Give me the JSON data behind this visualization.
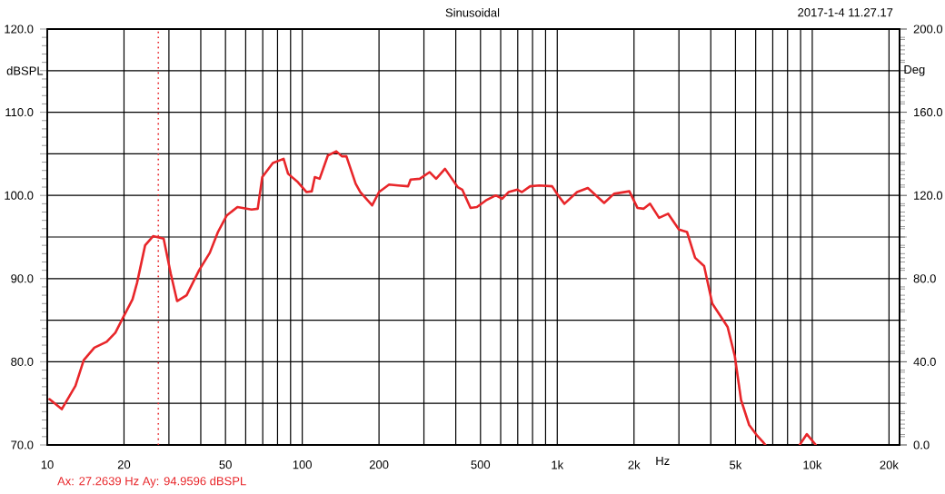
{
  "chart_data": {
    "type": "line",
    "title": "Sinusoidal",
    "xlabel": "Hz",
    "ylabel": "dBSPL",
    "y2label": "Deg",
    "annotations": [
      "2017-1-4 11.27.17",
      "Ax: 27.2639 Hz  Ay: 94.9596 dBSPL"
    ],
    "log": "x",
    "grid": true,
    "marker": "none",
    "line_style": "solid",
    "xlim": [
      10,
      22000
    ],
    "ylim": [
      70,
      120
    ],
    "y2lim": [
      0,
      200
    ],
    "xticks": [
      {
        "value": 10,
        "label": "10"
      },
      {
        "value": 20,
        "label": "20"
      },
      {
        "value": 30,
        "label": null
      },
      {
        "value": 40,
        "label": null
      },
      {
        "value": 50,
        "label": "50"
      },
      {
        "value": 60,
        "label": null
      },
      {
        "value": 70,
        "label": null
      },
      {
        "value": 80,
        "label": null
      },
      {
        "value": 90,
        "label": null
      },
      {
        "value": 100,
        "label": "100"
      },
      {
        "value": 200,
        "label": "200"
      },
      {
        "value": 300,
        "label": null
      },
      {
        "value": 400,
        "label": null
      },
      {
        "value": 500,
        "label": "500"
      },
      {
        "value": 600,
        "label": null
      },
      {
        "value": 700,
        "label": null
      },
      {
        "value": 800,
        "label": null
      },
      {
        "value": 900,
        "label": null
      },
      {
        "value": 1000,
        "label": "1k"
      },
      {
        "value": 2000,
        "label": "2k"
      },
      {
        "value": 3000,
        "label": null
      },
      {
        "value": 4000,
        "label": null
      },
      {
        "value": 5000,
        "label": "5k"
      },
      {
        "value": 6000,
        "label": null
      },
      {
        "value": 7000,
        "label": null
      },
      {
        "value": 8000,
        "label": null
      },
      {
        "value": 9000,
        "label": null
      },
      {
        "value": 10000,
        "label": "10k"
      },
      {
        "value": 20000,
        "label": "20k"
      }
    ],
    "yticks": [
      {
        "value": 70,
        "label": "70.0"
      },
      {
        "value": 75,
        "label": null
      },
      {
        "value": 80,
        "label": "80.0"
      },
      {
        "value": 85,
        "label": null
      },
      {
        "value": 90,
        "label": "90.0"
      },
      {
        "value": 95,
        "label": null
      },
      {
        "value": 100,
        "label": "100.0"
      },
      {
        "value": 105,
        "label": null
      },
      {
        "value": 110,
        "label": "110.0"
      },
      {
        "value": 115,
        "label": null
      },
      {
        "value": 120,
        "label": "120.0"
      }
    ],
    "y2ticks": [
      {
        "value": 0,
        "label": "0.0"
      },
      {
        "value": 40,
        "label": "40.0"
      },
      {
        "value": 80,
        "label": "80.0"
      },
      {
        "value": 120,
        "label": "120.0"
      },
      {
        "value": 160,
        "label": "160.0"
      },
      {
        "value": 200,
        "label": "200.0"
      }
    ],
    "ref_lines": [
      {
        "axis": "x",
        "value": 27.2639,
        "color": "#e8262a",
        "line_style": "dotted"
      }
    ],
    "x": [
      10.2,
      11.4,
      12.9,
      13.9,
      15.3,
      17.1,
      18.5,
      19.9,
      21.6,
      22.5,
      24.2,
      26.0,
      28.6,
      30.5,
      32.3,
      35.2,
      39.4,
      43.4,
      46.7,
      50.6,
      55.7,
      63.3,
      66.9,
      69.7,
      76.7,
      84.5,
      88.0,
      96.1,
      104,
      109,
      112,
      117,
      126,
      136,
      143,
      149,
      162,
      169,
      188,
      200,
      219,
      238,
      260,
      266,
      289,
      316,
      335,
      363,
      407,
      424,
      457,
      484,
      525,
      574,
      608,
      644,
      698,
      727,
      783,
      850,
      955,
      1008,
      1067,
      1196,
      1318,
      1527,
      1670,
      1918,
      2063,
      2184,
      2312,
      2508,
      2720,
      3000,
      3228,
      3472,
      3767,
      4054,
      4325,
      4655,
      4968,
      5258,
      5657,
      6087,
      6393,
      6551,
      7500,
      8925,
      9524,
      10330
    ],
    "series": [
      {
        "color": "#e8262a",
        "values": [
          75.5,
          74.3,
          77.1,
          80.2,
          81.7,
          82.4,
          83.5,
          85.4,
          87.5,
          89.5,
          94.0,
          95.1,
          94.8,
          90.6,
          87.3,
          88.0,
          91.0,
          93.1,
          95.6,
          97.6,
          98.6,
          98.3,
          98.4,
          102.2,
          103.9,
          104.4,
          102.6,
          101.6,
          100.4,
          100.5,
          102.2,
          102.0,
          104.8,
          105.3,
          104.7,
          104.7,
          101.4,
          100.4,
          98.8,
          100.4,
          101.3,
          101.2,
          101.1,
          101.9,
          102.0,
          102.8,
          102.0,
          103.2,
          101.0,
          100.7,
          98.5,
          98.6,
          99.4,
          100.0,
          99.6,
          100.4,
          100.7,
          100.4,
          101.1,
          101.2,
          101.1,
          100.0,
          99.0,
          100.4,
          100.9,
          99.1,
          100.2,
          100.5,
          98.5,
          98.4,
          99.0,
          97.3,
          97.8,
          95.9,
          95.6,
          92.5,
          91.5,
          87.0,
          85.7,
          84.2,
          80.7,
          75.4,
          72.4,
          71.1,
          70.4,
          70.0,
          null,
          70.0,
          71.3,
          70.0
        ]
      }
    ]
  }
}
